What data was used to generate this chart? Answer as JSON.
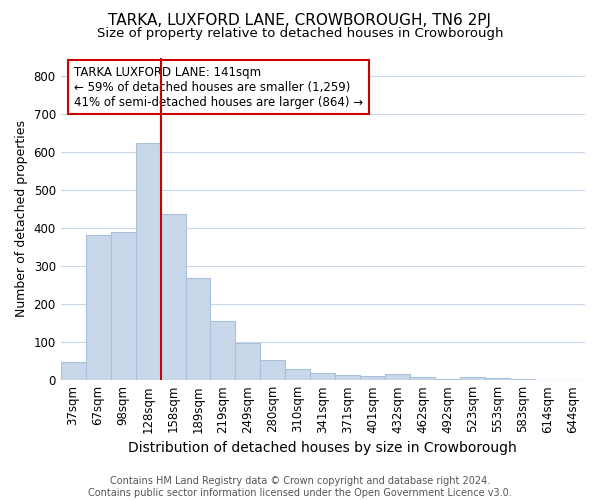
{
  "title": "TARKA, LUXFORD LANE, CROWBOROUGH, TN6 2PJ",
  "subtitle": "Size of property relative to detached houses in Crowborough",
  "xlabel": "Distribution of detached houses by size in Crowborough",
  "ylabel": "Number of detached properties",
  "footnote": "Contains HM Land Registry data © Crown copyright and database right 2024.\nContains public sector information licensed under the Open Government Licence v3.0.",
  "bar_labels": [
    "37sqm",
    "67sqm",
    "98sqm",
    "128sqm",
    "158sqm",
    "189sqm",
    "219sqm",
    "249sqm",
    "280sqm",
    "310sqm",
    "341sqm",
    "371sqm",
    "401sqm",
    "432sqm",
    "462sqm",
    "492sqm",
    "523sqm",
    "553sqm",
    "583sqm",
    "614sqm",
    "644sqm"
  ],
  "bar_values": [
    48,
    383,
    390,
    625,
    438,
    268,
    157,
    97,
    53,
    30,
    18,
    13,
    12,
    16,
    8,
    3,
    8,
    5,
    2,
    1,
    1
  ],
  "bar_color": "#c8d8ea",
  "bar_edgecolor": "#a8c0d8",
  "vline_color": "#cc0000",
  "annotation_text": "TARKA LUXFORD LANE: 141sqm\n← 59% of detached houses are smaller (1,259)\n41% of semi-detached houses are larger (864) →",
  "annotation_box_edgecolor": "#cc0000",
  "ylim": [
    0,
    850
  ],
  "yticks": [
    0,
    100,
    200,
    300,
    400,
    500,
    600,
    700,
    800
  ],
  "background_color": "#ffffff",
  "plot_bg_color": "#ffffff",
  "grid_color": "#c8d8ea",
  "title_fontsize": 11,
  "subtitle_fontsize": 9.5,
  "xlabel_fontsize": 10,
  "ylabel_fontsize": 9,
  "tick_fontsize": 8.5,
  "footnote_fontsize": 7
}
